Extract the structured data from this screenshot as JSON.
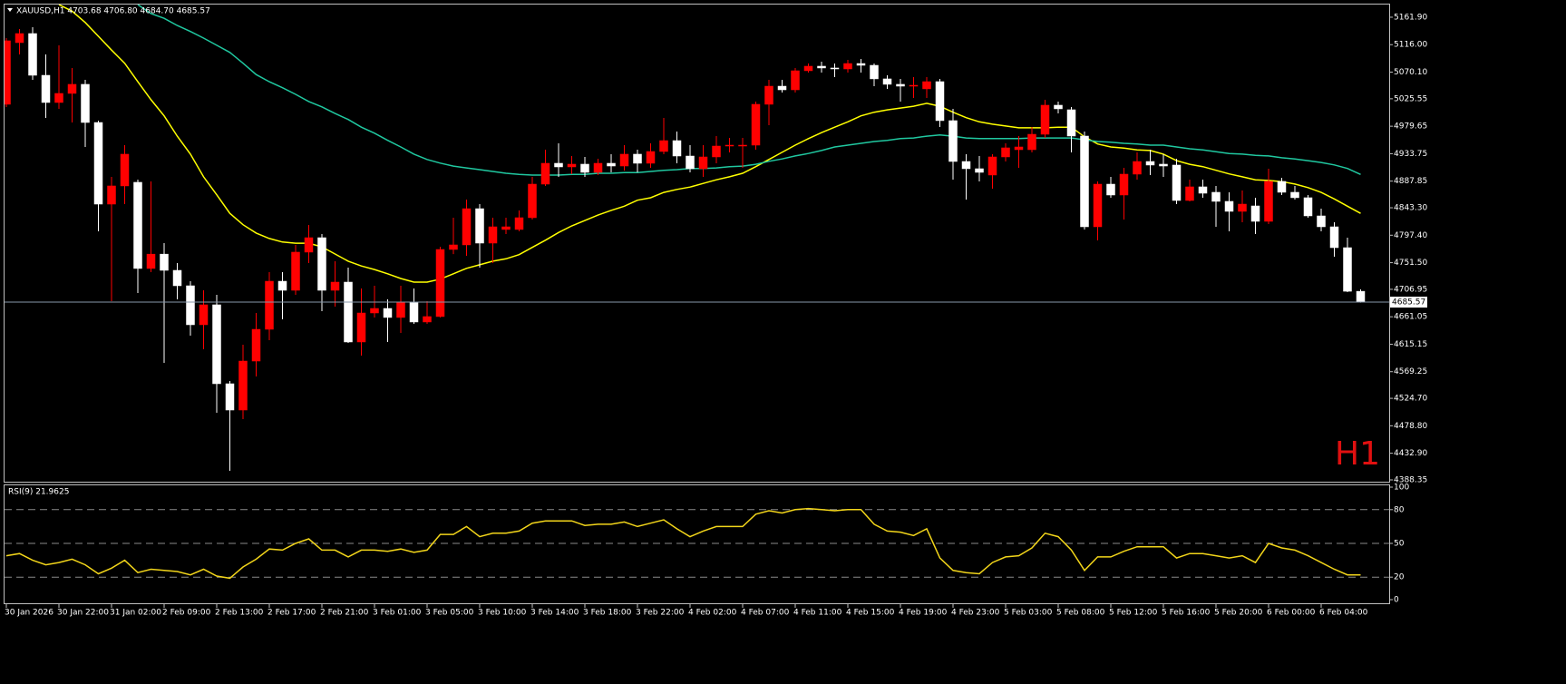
{
  "chart_data": [
    {
      "type": "candlestick",
      "title": "XAUUSD,H1  4703.68 4706.80 4684.70 4685.57",
      "watermark": "H1",
      "categories": [
        "30 Jan 2026",
        null,
        null,
        null,
        "30 Jan 22:00",
        null,
        null,
        null,
        "31 Jan 02:00",
        null,
        null,
        null,
        "2 Feb 09:00",
        null,
        null,
        null,
        "2 Feb 13:00",
        null,
        null,
        null,
        "2 Feb 17:00",
        null,
        null,
        null,
        "2 Feb 21:00",
        null,
        null,
        null,
        "3 Feb 01:00",
        null,
        null,
        null,
        "3 Feb 05:00",
        null,
        null,
        null,
        "3 Feb 10:00",
        null,
        null,
        null,
        "3 Feb 14:00",
        null,
        null,
        null,
        "3 Feb 18:00",
        null,
        null,
        null,
        "3 Feb 22:00",
        null,
        null,
        null,
        "4 Feb 02:00",
        null,
        null,
        null,
        "4 Feb 07:00",
        null,
        null,
        null,
        "4 Feb 11:00",
        null,
        null,
        null,
        "4 Feb 15:00",
        null,
        null,
        null,
        "4 Feb 19:00",
        null,
        null,
        null,
        "4 Feb 23:00",
        null,
        null,
        null,
        "5 Feb 03:00",
        null,
        null,
        null,
        "5 Feb 08:00",
        null,
        null,
        null,
        "5 Feb 12:00",
        null,
        null,
        null,
        "5 Feb 16:00",
        null,
        null,
        null,
        "5 Feb 20:00",
        null,
        null,
        null,
        "6 Feb 00:00",
        null,
        null,
        null,
        "6 Feb 04:00",
        null,
        null,
        null
      ],
      "open": [
        5016.3,
        5119.4,
        5134.6,
        5064.8,
        5019.3,
        5034.5,
        5049.7,
        4985.9,
        4849.4,
        4879.8,
        4885.9,
        4741.8,
        4765.8,
        4738.7,
        4712.9,
        4647.7,
        4681.1,
        4549.1,
        4505.1,
        4587.0,
        4640.1,
        4720.5,
        4705.3,
        4769.1,
        4793.3,
        4705.3,
        4719.0,
        4618.9,
        4667.4,
        4675.0,
        4659.9,
        4685.6,
        4652.3,
        4661.4,
        4773.6,
        4781.2,
        4841.8,
        4784.2,
        4807.0,
        4807.0,
        4826.7,
        4882.8,
        4917.7,
        4911.6,
        4916.2,
        4902.5,
        4917.7,
        4913.1,
        4932.9,
        4917.7,
        4937.4,
        4955.6,
        4929.8,
        4908.6,
        4928.3,
        4946.5,
        4946.5,
        4948.0,
        5016.3,
        5046.6,
        5040.5,
        5072.4,
        5080.0,
        5077.0,
        5075.4,
        5084.5,
        5081.5,
        5058.8,
        5049.7,
        5046.6,
        5042.1,
        5054.2,
        4989.0,
        4920.7,
        4908.6,
        4898.0,
        4928.3,
        4940.4,
        4940.4,
        4966.2,
        5014.8,
        5007.2,
        4963.2,
        4811.5,
        4882.8,
        4864.6,
        4899.5,
        4920.7,
        4916.2,
        4914.7,
        4855.5,
        4878.3,
        4869.2,
        4854.0,
        4837.3,
        4846.4,
        4820.6,
        4887.4,
        4869.2,
        4860.1,
        4829.7,
        4811.5,
        4776.6,
        4703.68
      ],
      "high": [
        5127.0,
        5142.2,
        5145.2,
        5099.7,
        5114.9,
        5077.0,
        5057.2,
        4989.0,
        4894.9,
        4948.0,
        4890.4,
        4887.4,
        4784.2,
        4750.8,
        4720.5,
        4705.3,
        4697.8,
        4553.6,
        4614.3,
        4667.4,
        4735.7,
        4735.7,
        4781.2,
        4814.5,
        4799.4,
        4753.9,
        4743.3,
        4708.4,
        4712.9,
        4690.2,
        4712.9,
        4708.4,
        4687.2,
        4778.1,
        4826.7,
        4857.0,
        4849.4,
        4826.7,
        4826.7,
        4838.8,
        4894.9,
        4940.4,
        4951.1,
        4929.8,
        4928.3,
        4925.3,
        4932.9,
        4948.0,
        4940.4,
        4951.1,
        4993.5,
        4970.8,
        4948.0,
        4948.0,
        4963.2,
        4960.2,
        4960.2,
        5020.8,
        5057.2,
        5057.2,
        5077.0,
        5084.5,
        5087.6,
        5084.5,
        5090.6,
        5092.1,
        5084.5,
        5064.8,
        5058.8,
        5061.8,
        5061.8,
        5058.8,
        5008.7,
        4932.9,
        4929.8,
        4932.9,
        4951.1,
        4963.2,
        4978.4,
        5023.9,
        5020.8,
        5011.7,
        4970.8,
        4887.4,
        4894.9,
        4910.1,
        4935.9,
        4940.4,
        4932.9,
        4925.3,
        4890.4,
        4890.4,
        4879.8,
        4869.2,
        4872.2,
        4860.1,
        4908.6,
        4893.4,
        4879.8,
        4864.6,
        4841.8,
        4819.1,
        4793.3,
        4706.8
      ],
      "low": [
        5011.7,
        5099.7,
        5057.2,
        4993.5,
        5008.7,
        4985.9,
        4945.0,
        4803.9,
        4687.2,
        4849.4,
        4700.8,
        4735.7,
        4584.0,
        4690.2,
        4629.5,
        4606.7,
        4500.6,
        4403.5,
        4490.0,
        4561.2,
        4621.9,
        4656.8,
        4697.8,
        4750.8,
        4670.5,
        4678.0,
        4617.4,
        4596.1,
        4659.9,
        4618.9,
        4634.0,
        4649.2,
        4649.2,
        4659.9,
        4765.8,
        4763.0,
        4743.3,
        4750.8,
        4799.4,
        4803.9,
        4823.6,
        4879.8,
        4894.9,
        4899.5,
        4894.9,
        4898.0,
        4902.5,
        4905.6,
        4902.5,
        4910.1,
        4932.9,
        4917.7,
        4902.5,
        4894.9,
        4917.7,
        4935.9,
        4910.1,
        4940.4,
        4981.4,
        5036.0,
        5036.0,
        5069.4,
        5069.4,
        5061.8,
        5069.4,
        5069.4,
        5046.6,
        5042.1,
        5020.8,
        5026.9,
        5026.9,
        4978.4,
        4890.4,
        4857.0,
        4887.4,
        4875.2,
        4920.7,
        4910.1,
        4935.9,
        4960.2,
        5001.1,
        4935.9,
        4807.0,
        4788.8,
        4860.1,
        4823.6,
        4890.4,
        4898.0,
        4894.9,
        4849.4,
        4854.0,
        4860.1,
        4811.5,
        4803.9,
        4819.1,
        4799.4,
        4816.0,
        4864.6,
        4857.0,
        4826.7,
        4803.9,
        4761.5,
        4702.3,
        4684.7
      ],
      "close": [
        5122.5,
        5134.6,
        5064.8,
        5019.3,
        5034.5,
        5049.7,
        4985.9,
        4849.4,
        4879.8,
        4932.9,
        4741.8,
        4765.8,
        4738.7,
        4712.9,
        4647.7,
        4681.1,
        4549.1,
        4505.1,
        4587.0,
        4640.1,
        4720.5,
        4705.3,
        4769.1,
        4793.3,
        4705.3,
        4719.0,
        4618.9,
        4667.4,
        4675.0,
        4659.9,
        4685.6,
        4652.3,
        4661.4,
        4773.6,
        4781.2,
        4841.8,
        4784.2,
        4811.5,
        4811.5,
        4826.7,
        4882.8,
        4917.7,
        4911.6,
        4916.2,
        4902.5,
        4917.7,
        4913.1,
        4932.9,
        4917.7,
        4937.4,
        4955.6,
        4929.8,
        4908.6,
        4928.3,
        4946.5,
        4948.0,
        4948.0,
        5016.3,
        5046.6,
        5040.5,
        5072.4,
        5080.0,
        5077.0,
        5075.4,
        5084.5,
        5081.5,
        5058.8,
        5049.7,
        5046.6,
        5048.1,
        5054.2,
        4989.0,
        4920.7,
        4908.6,
        4902.5,
        4928.3,
        4943.5,
        4945.0,
        4966.2,
        5014.8,
        5008.7,
        4963.2,
        4811.5,
        4882.8,
        4864.6,
        4899.5,
        4920.7,
        4914.7,
        4913.1,
        4855.5,
        4878.3,
        4867.6,
        4854.0,
        4837.3,
        4849.4,
        4820.6,
        4887.4,
        4869.2,
        4860.1,
        4829.7,
        4811.5,
        4776.6,
        4703.7,
        4685.57
      ],
      "up_color": "#ff0000",
      "down_color": "#ffffff",
      "lines": [
        {
          "color": "#ffff00",
          "values": [
            null,
            null,
            null,
            null,
            5183,
            5172,
            5153,
            5130,
            5107,
            5085,
            5054,
            5024,
            4997,
            4963,
            4933,
            4895,
            4865,
            4834,
            4815,
            4801,
            4792,
            4786,
            4784,
            4784,
            4778,
            4766,
            4754,
            4746,
            4740,
            4733,
            4725,
            4719,
            4719,
            4724,
            4733,
            4742,
            4748,
            4754,
            4758,
            4765,
            4777,
            4789,
            4802,
            4813,
            4822,
            4831,
            4839,
            4846,
            4856,
            4860,
            4869,
            4874,
            4878,
            4884,
            4890,
            4895,
            4901,
            4912,
            4924,
            4936,
            4948,
            4959,
            4969,
            4978,
            4987,
            4997,
            5003,
            5007,
            5010,
            5013,
            5018,
            5013,
            5003,
            4994,
            4987,
            4983,
            4980,
            4977,
            4977,
            4977,
            4978,
            4978,
            4962,
            4950,
            4945,
            4943,
            4940,
            4939,
            4933,
            4922,
            4916,
            4912,
            4906,
            4900,
            4895,
            4890,
            4889,
            4887,
            4883,
            4877,
            4869,
            4858,
            4846,
            4834
          ]
        },
        {
          "color": "#20c8a0",
          "values": [
            null,
            null,
            null,
            null,
            null,
            null,
            null,
            null,
            null,
            null,
            5183,
            5168,
            5160,
            5148,
            5138,
            5127,
            5115,
            5103,
            5085,
            5066,
            5054,
            5044,
            5033,
            5021,
            5012,
            5001,
            4991,
            4978,
            4968,
            4956,
            4945,
            4933,
            4924,
            4918,
            4913,
            4910,
            4907,
            4904,
            4901,
            4899,
            4898,
            4898,
            4898,
            4899,
            4899,
            4901,
            4901,
            4902,
            4902,
            4904,
            4906,
            4907,
            4909,
            4909,
            4910,
            4912,
            4913,
            4916,
            4921,
            4925,
            4930,
            4934,
            4939,
            4945,
            4948,
            4951,
            4954,
            4956,
            4959,
            4960,
            4963,
            4965,
            4963,
            4960,
            4959,
            4959,
            4959,
            4959,
            4960,
            4960,
            4960,
            4960,
            4957,
            4954,
            4953,
            4951,
            4950,
            4948,
            4948,
            4945,
            4942,
            4940,
            4937,
            4934,
            4933,
            4931,
            4930,
            4927,
            4925,
            4922,
            4919,
            4915,
            4909,
            4899
          ]
        }
      ],
      "last_price_line_color": "#8797aa",
      "ylim": [
        4385.3,
        5183.1
      ],
      "yticks": [
        {
          "value": 5161.9,
          "label": "5161.90"
        },
        {
          "value": 5116,
          "label": "5116.00"
        },
        {
          "value": 5070.1,
          "label": "5070.10"
        },
        5025.55,
        4979.65,
        4933.75,
        4887.85,
        {
          "value": 4843.3,
          "label": "4843.30"
        },
        {
          "value": 4797.4,
          "label": "4797.40"
        },
        {
          "value": 4751.5,
          "label": "4751.50"
        },
        4706.95,
        4661.05,
        4615.15,
        4569.25,
        {
          "value": 4524.7,
          "label": "4524.70"
        },
        {
          "value": 4478.8,
          "label": "4478.80"
        },
        {
          "value": 4432.9,
          "label": "4432.90"
        },
        4388.35
      ]
    },
    {
      "type": "line",
      "title": "RSI(9) 21.9625",
      "color": "#f2d51a",
      "values": [
        39,
        41,
        35,
        31,
        33,
        36,
        31,
        23,
        28,
        35,
        24,
        27,
        26,
        25,
        22,
        27,
        21,
        19,
        29,
        36,
        45,
        44,
        50,
        54,
        44,
        44,
        38,
        44,
        44,
        43,
        45,
        42,
        44,
        58,
        58,
        65,
        56,
        59,
        59,
        61,
        68,
        70,
        70,
        70,
        66,
        67,
        67,
        69,
        65,
        68,
        71,
        63,
        56,
        61,
        65,
        65,
        65,
        76,
        79,
        77,
        80,
        81,
        80,
        79,
        80,
        80,
        67,
        61,
        60,
        57,
        63,
        37,
        26,
        24,
        23,
        33,
        38,
        39,
        46,
        59,
        56,
        44,
        26,
        38,
        38,
        43,
        47,
        47,
        47,
        37,
        41,
        41,
        39,
        37,
        39,
        33,
        50,
        46,
        44,
        39,
        33,
        27,
        22,
        21.9625
      ],
      "ylim": [
        0,
        100
      ],
      "yticks": [
        0,
        20,
        50,
        80,
        100
      ],
      "levels": [
        20,
        50,
        80
      ],
      "level_color": "#8a8a8a"
    }
  ]
}
